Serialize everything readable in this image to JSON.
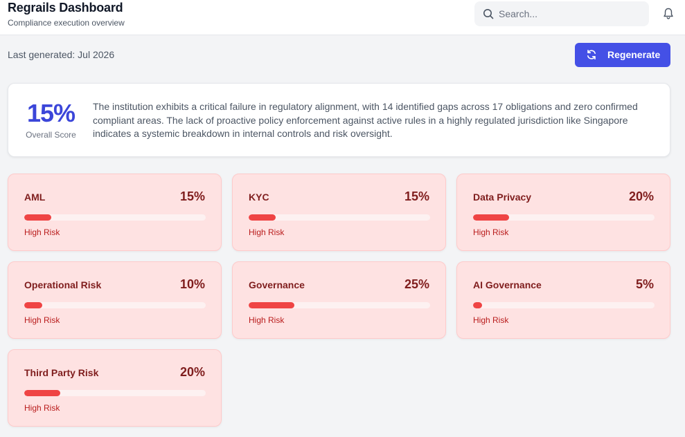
{
  "header": {
    "title": "Regrails Dashboard",
    "subtitle": "Compliance execution overview",
    "search": {
      "placeholder": "Search...",
      "value": ""
    },
    "icons": {
      "search": "search-icon",
      "notifications": "bell-icon"
    }
  },
  "toolbar": {
    "last_generated": "Last generated: Jul 2026",
    "regenerate_label": "Regenerate",
    "regenerate_icon": "refresh-icon"
  },
  "summary": {
    "score": "15%",
    "score_label": "Overall Score",
    "text": "The institution exhibits a critical failure in regulatory alignment, with 14 identified gaps across 17 obligations and zero confirmed compliant areas. The lack of proactive policy enforcement against active rules in a highly regulated jurisdiction like Singapore indicates a systemic breakdown in internal controls and risk oversight."
  },
  "colors": {
    "accent": "#4450e6",
    "score": "#3b46d9",
    "card_bg": "#fee2e2",
    "risk_bar": "#ef4444"
  },
  "categories": [
    {
      "name": "AML",
      "percent": "15%",
      "score": 15,
      "risk": "High Risk"
    },
    {
      "name": "KYC",
      "percent": "15%",
      "score": 15,
      "risk": "High Risk"
    },
    {
      "name": "Data Privacy",
      "percent": "20%",
      "score": 20,
      "risk": "High Risk"
    },
    {
      "name": "Operational Risk",
      "percent": "10%",
      "score": 10,
      "risk": "High Risk"
    },
    {
      "name": "Governance",
      "percent": "25%",
      "score": 25,
      "risk": "High Risk"
    },
    {
      "name": "AI Governance",
      "percent": "5%",
      "score": 5,
      "risk": "High Risk"
    },
    {
      "name": "Third Party Risk",
      "percent": "20%",
      "score": 20,
      "risk": "High Risk"
    }
  ]
}
